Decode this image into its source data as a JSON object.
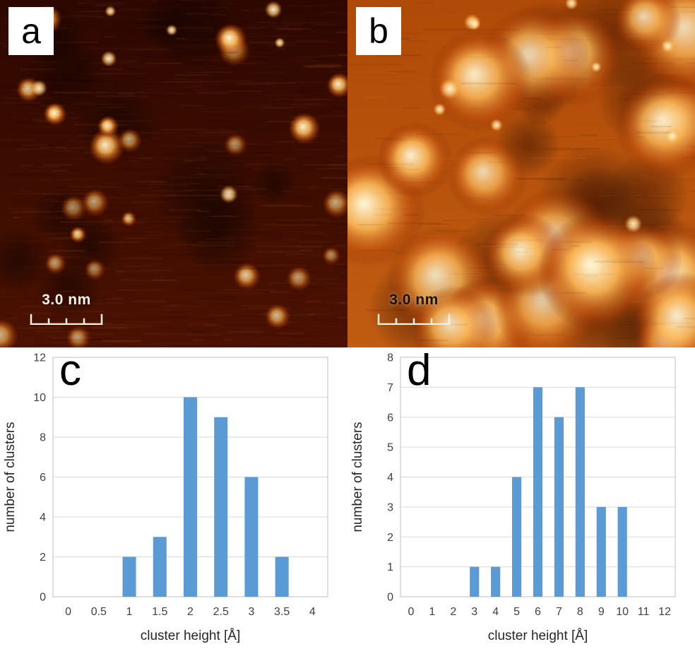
{
  "figure": {
    "panels": [
      {
        "id": "a",
        "label": "a",
        "scale_bar": "3.0 nm"
      },
      {
        "id": "b",
        "label": "b",
        "scale_bar": "3.0 nm"
      },
      {
        "id": "c",
        "label": "c"
      },
      {
        "id": "d",
        "label": "d"
      }
    ],
    "colors": {
      "bar_blue": "#5b9bd5",
      "gridline": "#d9d9d9",
      "plot_border": "#bfbfbf",
      "tick_text": "#404040",
      "axis_title_text": "#262626",
      "stm_dark_background": "#330a00",
      "stm_bright_background": "#b85410",
      "cluster_highlight": "#fff3cf"
    }
  },
  "chart_data": [
    {
      "type": "bar",
      "panel": "c",
      "title": "",
      "categories": [
        "0",
        "0.5",
        "1",
        "1.5",
        "2",
        "2.5",
        "3",
        "3.5",
        "4"
      ],
      "values": [
        0,
        0,
        2,
        3,
        10,
        9,
        6,
        2,
        0
      ],
      "xlabel": "cluster height [Å]",
      "ylabel": "number of clusters",
      "ylim": [
        0,
        12
      ],
      "ystep": 2,
      "grid": true,
      "bar_color": "#5b9bd5"
    },
    {
      "type": "bar",
      "panel": "d",
      "title": "",
      "categories": [
        "0",
        "1",
        "2",
        "3",
        "4",
        "5",
        "6",
        "7",
        "8",
        "9",
        "10",
        "11",
        "12"
      ],
      "values": [
        0,
        0,
        0,
        1,
        1,
        4,
        7,
        6,
        7,
        3,
        3,
        0,
        0
      ],
      "xlabel": "cluster height [Å]",
      "ylabel": "number of clusters",
      "ylim": [
        0,
        8
      ],
      "ystep": 1,
      "grid": true,
      "bar_color": "#5b9bd5"
    }
  ]
}
